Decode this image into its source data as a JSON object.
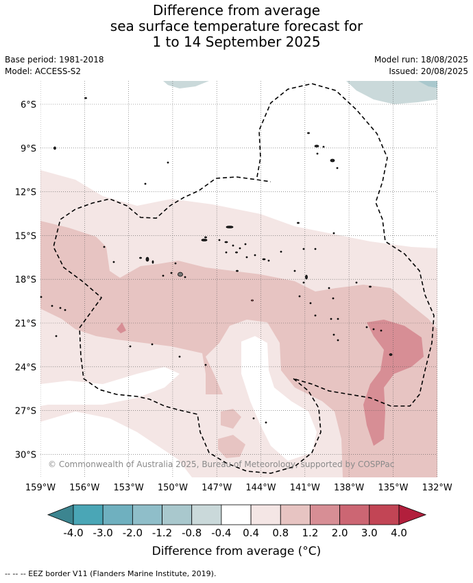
{
  "title": {
    "line1": "Difference from average",
    "line2": "sea surface temperature forecast for",
    "line3": "1 to 14 September 2025"
  },
  "meta": {
    "base_period": "Base period: 1981-2018",
    "model": "Model: ACCESS-S2",
    "model_run": "Model run: 18/08/2025",
    "issued": "Issued: 20/08/2025"
  },
  "map": {
    "lat_labels": [
      "6°S",
      "9°S",
      "12°S",
      "15°S",
      "18°S",
      "21°S",
      "24°S",
      "27°S",
      "30°S"
    ],
    "lon_labels": [
      "159°W",
      "156°W",
      "153°W",
      "150°W",
      "147°W",
      "144°W",
      "141°W",
      "138°W",
      "135°W",
      "132°W"
    ],
    "copyright": "© Commonwealth of Australia 2025, Bureau of Meteorology, supported by COSPPac"
  },
  "colorbar": {
    "ticks": [
      "-4.0",
      "-3.0",
      "-2.0",
      "-1.2",
      "-0.8",
      "-0.4",
      "0.4",
      "0.8",
      "1.2",
      "2.0",
      "3.0",
      "4.0"
    ],
    "colors": [
      "#3c8590",
      "#4aa6b6",
      "#6fb0bf",
      "#8fbec9",
      "#a9c8cd",
      "#cad9da",
      "#ffffff",
      "#f4e6e5",
      "#e7c4c2",
      "#d78e95",
      "#cc6673",
      "#c24555",
      "#b21f3c"
    ],
    "title": "Difference from average (°C)"
  },
  "footer": "-- -- -- EEZ border V11 (Flanders Marine Institute, 2019)."
}
